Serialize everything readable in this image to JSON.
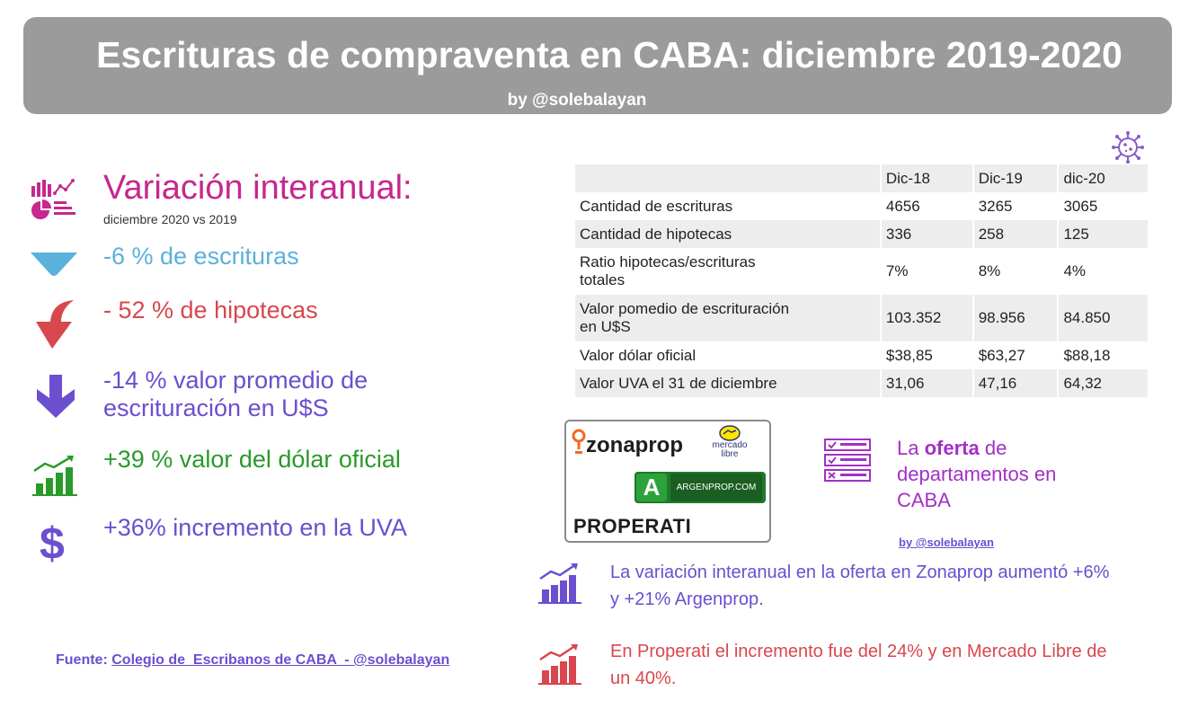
{
  "header": {
    "title": "Escrituras de compraventa en CABA: diciembre 2019-2020",
    "byline": "by @solebalayan"
  },
  "left": {
    "heading": "Variación interanual:",
    "subheading": "diciembre 2020 vs 2019",
    "stats": [
      {
        "text": "-6 % de escrituras",
        "color": "#5ab1dc",
        "icon": "triangle-down-icon"
      },
      {
        "text": "- 52 % de hipotecas",
        "color": "#d8474e",
        "icon": "curved-arrow-down-icon"
      },
      {
        "text": "-14 % valor promedio de\nescrituración en U$S",
        "color": "#6b4fcf",
        "icon": "arrow-down-icon"
      },
      {
        "text": "+39 % valor del dólar oficial",
        "color": "#2a9a2a",
        "icon": "rising-chart-icon"
      },
      {
        "text": "+36% incremento en la UVA",
        "color": "#6b4fcf",
        "icon": "dollar-icon"
      }
    ],
    "source_label": "Fuente:",
    "source_link": "Colegio de  Escribanos de CABA  - ",
    "source_handle": "@solebalayan"
  },
  "table": {
    "headers": [
      "",
      "Dic-18",
      "Dic-19",
      "dic-20"
    ],
    "rows": [
      {
        "label": "Cantidad de escrituras",
        "values": [
          "4656",
          "3265",
          "3065"
        ]
      },
      {
        "label": "Cantidad de hipotecas",
        "values": [
          "336",
          "258",
          "125"
        ]
      },
      {
        "label": "Ratio hipotecas/escrituras\ntotales",
        "values": [
          "7%",
          "8%",
          "4%"
        ]
      },
      {
        "label": "Valor pomedio de escrituración\nen U$S",
        "values": [
          "103.352",
          "98.956",
          "84.850"
        ]
      },
      {
        "label": "Valor dólar oficial",
        "values": [
          "$38,85",
          "$63,27",
          "$88,18"
        ]
      },
      {
        "label": "Valor UVA el 31 de diciembre",
        "values": [
          "31,06",
          "47,16",
          "64,32"
        ]
      }
    ]
  },
  "logos": {
    "zonaprop": "zonaprop",
    "mercado_libre_top": "mercado",
    "mercado_libre_bottom": "libre",
    "argenprop": "ARGENPROP.COM",
    "properati": "PROPERATI"
  },
  "oferta": {
    "prefix": "La ",
    "bold": "oferta",
    "suffix": " de\ndepartamentos en\nCABA",
    "byline": "by @solebalayan"
  },
  "notes": [
    {
      "text": "La variación interanual en la oferta en Zonaprop aumentó +6%\ny +21% Argenprop.",
      "color": "#6b4fcf"
    },
    {
      "text": "En Properati el incremento fue del 24% y en Mercado Libre de\nun 40%.",
      "color": "#d8474e"
    }
  ],
  "colors": {
    "header_bg": "#9b9b9b",
    "magenta": "#c7278f",
    "purple": "#6b4fcf",
    "red": "#d8474e",
    "green": "#2a9a2a",
    "blue": "#5ab1dc",
    "oferta_purple": "#a32fc7"
  }
}
